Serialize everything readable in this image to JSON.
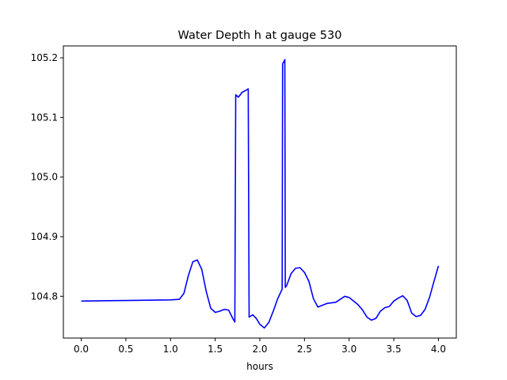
{
  "chart_data": {
    "type": "line",
    "title": "Water Depth h at gauge 530",
    "xlabel": "hours",
    "ylabel": "",
    "xlim": [
      -0.2,
      4.2
    ],
    "ylim": [
      104.73,
      105.22
    ],
    "grid": false,
    "x_ticks": [
      0.0,
      0.5,
      1.0,
      1.5,
      2.0,
      2.5,
      3.0,
      3.5,
      4.0
    ],
    "x_tick_labels": [
      "0.0",
      "0.5",
      "1.0",
      "1.5",
      "2.0",
      "2.5",
      "3.0",
      "3.5",
      "4.0"
    ],
    "y_ticks": [
      104.8,
      104.9,
      105.0,
      105.1,
      105.2
    ],
    "y_tick_labels": [
      "104.8",
      "104.9",
      "105.0",
      "105.1",
      "105.2"
    ],
    "series": [
      {
        "color": "#0000ff",
        "points": [
          [
            0.0,
            104.792
          ],
          [
            0.5,
            104.793
          ],
          [
            1.0,
            104.794
          ],
          [
            1.1,
            104.795
          ],
          [
            1.15,
            104.805
          ],
          [
            1.2,
            104.835
          ],
          [
            1.25,
            104.858
          ],
          [
            1.3,
            104.861
          ],
          [
            1.35,
            104.845
          ],
          [
            1.4,
            104.808
          ],
          [
            1.45,
            104.78
          ],
          [
            1.5,
            104.773
          ],
          [
            1.55,
            104.775
          ],
          [
            1.6,
            104.778
          ],
          [
            1.65,
            104.777
          ],
          [
            1.7,
            104.762
          ],
          [
            1.72,
            104.757
          ],
          [
            1.73,
            105.138
          ],
          [
            1.76,
            105.134
          ],
          [
            1.8,
            105.142
          ],
          [
            1.85,
            105.146
          ],
          [
            1.87,
            105.148
          ],
          [
            1.88,
            104.765
          ],
          [
            1.92,
            104.769
          ],
          [
            1.96,
            104.763
          ],
          [
            2.0,
            104.753
          ],
          [
            2.05,
            104.747
          ],
          [
            2.1,
            104.756
          ],
          [
            2.15,
            104.775
          ],
          [
            2.2,
            104.796
          ],
          [
            2.25,
            104.812
          ],
          [
            2.255,
            105.19
          ],
          [
            2.27,
            105.194
          ],
          [
            2.28,
            105.197
          ],
          [
            2.285,
            104.815
          ],
          [
            2.3,
            104.818
          ],
          [
            2.35,
            104.838
          ],
          [
            2.4,
            104.847
          ],
          [
            2.45,
            104.848
          ],
          [
            2.5,
            104.84
          ],
          [
            2.55,
            104.825
          ],
          [
            2.6,
            104.796
          ],
          [
            2.65,
            104.782
          ],
          [
            2.7,
            104.785
          ],
          [
            2.75,
            104.788
          ],
          [
            2.85,
            104.79
          ],
          [
            2.9,
            104.795
          ],
          [
            2.95,
            104.8
          ],
          [
            3.0,
            104.798
          ],
          [
            3.05,
            104.792
          ],
          [
            3.1,
            104.786
          ],
          [
            3.15,
            104.777
          ],
          [
            3.2,
            104.765
          ],
          [
            3.25,
            104.76
          ],
          [
            3.3,
            104.763
          ],
          [
            3.35,
            104.775
          ],
          [
            3.4,
            104.781
          ],
          [
            3.45,
            104.783
          ],
          [
            3.5,
            104.792
          ],
          [
            3.55,
            104.797
          ],
          [
            3.6,
            104.801
          ],
          [
            3.65,
            104.793
          ],
          [
            3.7,
            104.772
          ],
          [
            3.75,
            104.766
          ],
          [
            3.8,
            104.768
          ],
          [
            3.85,
            104.778
          ],
          [
            3.9,
            104.798
          ],
          [
            3.95,
            104.825
          ],
          [
            4.0,
            104.851
          ]
        ]
      }
    ]
  }
}
